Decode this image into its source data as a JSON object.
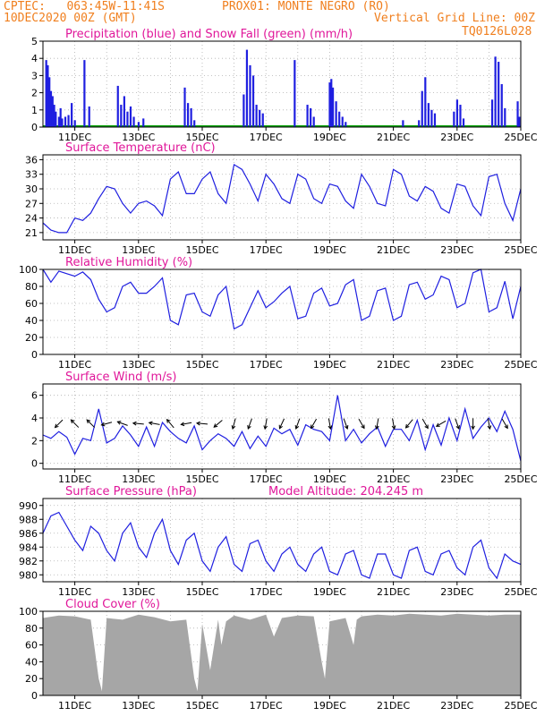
{
  "header": {
    "left_line1": "CPTEC:   063:45W-11:41S",
    "station": "PROX01: MONTE NEGRO (RO)",
    "left_line2": "10DEC2020 00Z (GMT)",
    "grid_note": "Vertical Grid Line: 00Z",
    "code": "TQ0126L028"
  },
  "colors": {
    "header": "#f07f1e",
    "title": "#e0179a",
    "series": "#1f1fe0",
    "snow": "#00a000",
    "cloud": "#a6a6a6",
    "grid": "#b0b0b0"
  },
  "chart_data": [
    {
      "id": "precip",
      "type": "bar",
      "title": "Precipitation (blue) and Snow Fall (green) (mm/h)",
      "x_tick_labels": [
        "11DEC",
        "13DEC",
        "15DEC",
        "17DEC",
        "19DEC",
        "21DEC",
        "23DEC",
        "25DEC"
      ],
      "y_ticks": [
        "0",
        "1",
        "2",
        "3",
        "4",
        "5"
      ],
      "ylim": [
        0,
        5
      ],
      "days_range": [
        0,
        15
      ],
      "bars": [
        [
          0.1,
          3.9
        ],
        [
          0.15,
          3.6
        ],
        [
          0.2,
          2.9
        ],
        [
          0.25,
          2.1
        ],
        [
          0.3,
          1.8
        ],
        [
          0.35,
          1.3
        ],
        [
          0.4,
          0.9
        ],
        [
          0.5,
          0.6
        ],
        [
          0.55,
          1.1
        ],
        [
          0.6,
          0.5
        ],
        [
          0.7,
          0.6
        ],
        [
          0.8,
          0.7
        ],
        [
          0.9,
          1.4
        ],
        [
          1.0,
          0.4
        ],
        [
          1.3,
          3.9
        ],
        [
          1.45,
          1.2
        ],
        [
          2.35,
          2.4
        ],
        [
          2.45,
          1.3
        ],
        [
          2.55,
          1.8
        ],
        [
          2.65,
          0.9
        ],
        [
          2.75,
          1.2
        ],
        [
          2.85,
          0.6
        ],
        [
          3.0,
          0.3
        ],
        [
          3.15,
          0.5
        ],
        [
          4.45,
          2.3
        ],
        [
          4.55,
          1.4
        ],
        [
          4.65,
          1.1
        ],
        [
          4.75,
          0.4
        ],
        [
          6.3,
          1.9
        ],
        [
          6.4,
          4.5
        ],
        [
          6.5,
          3.6
        ],
        [
          6.6,
          3.0
        ],
        [
          6.7,
          1.3
        ],
        [
          6.8,
          1.0
        ],
        [
          6.9,
          0.8
        ],
        [
          7.9,
          3.9
        ],
        [
          8.3,
          1.3
        ],
        [
          8.4,
          1.1
        ],
        [
          8.5,
          0.6
        ],
        [
          9.0,
          2.6
        ],
        [
          9.05,
          2.8
        ],
        [
          9.1,
          2.3
        ],
        [
          9.2,
          1.5
        ],
        [
          9.3,
          0.9
        ],
        [
          9.4,
          0.6
        ],
        [
          9.5,
          0.3
        ],
        [
          11.3,
          0.4
        ],
        [
          11.8,
          0.4
        ],
        [
          11.9,
          2.1
        ],
        [
          12.0,
          2.9
        ],
        [
          12.1,
          1.4
        ],
        [
          12.2,
          1.0
        ],
        [
          12.3,
          0.8
        ],
        [
          12.9,
          0.9
        ],
        [
          13.0,
          1.6
        ],
        [
          13.1,
          1.3
        ],
        [
          13.2,
          0.5
        ],
        [
          14.1,
          1.6
        ],
        [
          14.2,
          4.1
        ],
        [
          14.3,
          3.8
        ],
        [
          14.4,
          2.5
        ],
        [
          14.5,
          1.1
        ],
        [
          14.9,
          1.5
        ],
        [
          14.95,
          0.6
        ]
      ],
      "snow": 0
    },
    {
      "id": "temp",
      "type": "line",
      "title": "Surface Temperature (nC)",
      "x_tick_labels": [
        "11DEC",
        "13DEC",
        "15DEC",
        "17DEC",
        "19DEC",
        "21DEC",
        "23DEC",
        "25DEC"
      ],
      "y_ticks": [
        "21",
        "24",
        "27",
        "30",
        "33",
        "36"
      ],
      "ylim": [
        19.5,
        37
      ],
      "days_range": [
        0,
        15
      ],
      "x": [
        0,
        0.25,
        0.5,
        0.75,
        1,
        1.25,
        1.5,
        1.75,
        2,
        2.25,
        2.5,
        2.75,
        3,
        3.25,
        3.5,
        3.75,
        4,
        4.25,
        4.5,
        4.75,
        5,
        5.25,
        5.5,
        5.75,
        6,
        6.25,
        6.5,
        6.75,
        7,
        7.25,
        7.5,
        7.75,
        8,
        8.25,
        8.5,
        8.75,
        9,
        9.25,
        9.5,
        9.75,
        10,
        10.25,
        10.5,
        10.75,
        11,
        11.25,
        11.5,
        11.75,
        12,
        12.25,
        12.5,
        12.75,
        13,
        13.25,
        13.5,
        13.75,
        14,
        14.25,
        14.5,
        14.75,
        15
      ],
      "y": [
        23,
        21.5,
        21,
        21,
        24,
        23.5,
        25,
        28,
        30.5,
        30,
        27,
        25,
        27,
        27.5,
        26.5,
        24.5,
        32,
        33.5,
        29,
        29,
        32,
        33.5,
        29,
        27,
        35,
        34,
        31,
        27.5,
        33,
        31,
        28,
        27,
        33,
        32,
        28,
        27,
        31,
        30.5,
        27.5,
        26,
        33,
        30.5,
        27,
        26.5,
        34,
        33,
        28.5,
        27.5,
        30.5,
        29.5,
        26,
        25,
        31,
        30.5,
        26.5,
        24.5,
        32.5,
        33,
        27,
        23.5,
        30
      ]
    },
    {
      "id": "rh",
      "type": "line",
      "title": "Relative Humidity (%)",
      "x_tick_labels": [
        "11DEC",
        "13DEC",
        "15DEC",
        "17DEC",
        "19DEC",
        "21DEC",
        "23DEC",
        "25DEC"
      ],
      "y_ticks": [
        "0",
        "20",
        "40",
        "60",
        "80",
        "100"
      ],
      "ylim": [
        0,
        100
      ],
      "days_range": [
        0,
        15
      ],
      "x": [
        0,
        0.25,
        0.5,
        0.75,
        1,
        1.25,
        1.5,
        1.75,
        2,
        2.25,
        2.5,
        2.75,
        3,
        3.25,
        3.5,
        3.75,
        4,
        4.25,
        4.5,
        4.75,
        5,
        5.25,
        5.5,
        5.75,
        6,
        6.25,
        6.5,
        6.75,
        7,
        7.25,
        7.5,
        7.75,
        8,
        8.25,
        8.5,
        8.75,
        9,
        9.25,
        9.5,
        9.75,
        10,
        10.25,
        10.5,
        10.75,
        11,
        11.25,
        11.5,
        11.75,
        12,
        12.25,
        12.5,
        12.75,
        13,
        13.25,
        13.5,
        13.75,
        14,
        14.25,
        14.5,
        14.75,
        15
      ],
      "y": [
        100,
        85,
        98,
        95,
        92,
        97,
        88,
        65,
        50,
        55,
        80,
        85,
        72,
        72,
        80,
        90,
        40,
        35,
        70,
        72,
        50,
        45,
        70,
        80,
        30,
        35,
        55,
        75,
        55,
        62,
        72,
        80,
        42,
        45,
        72,
        78,
        57,
        60,
        82,
        88,
        40,
        45,
        75,
        78,
        40,
        45,
        82,
        85,
        65,
        70,
        92,
        88,
        55,
        60,
        96,
        100,
        50,
        55,
        86,
        42,
        80
      ]
    },
    {
      "id": "wind",
      "type": "line",
      "title": "Surface Wind (m/s)",
      "x_tick_labels": [
        "11DEC",
        "13DEC",
        "15DEC",
        "17DEC",
        "19DEC",
        "21DEC",
        "23DEC",
        "25DEC"
      ],
      "y_ticks": [
        "0",
        "2",
        "4",
        "6"
      ],
      "ylim": [
        -0.5,
        7
      ],
      "days_range": [
        0,
        15
      ],
      "x": [
        0,
        0.25,
        0.5,
        0.75,
        1,
        1.25,
        1.5,
        1.75,
        2,
        2.25,
        2.5,
        2.75,
        3,
        3.25,
        3.5,
        3.75,
        4,
        4.25,
        4.5,
        4.75,
        5,
        5.25,
        5.5,
        5.75,
        6,
        6.25,
        6.5,
        6.75,
        7,
        7.25,
        7.5,
        7.75,
        8,
        8.25,
        8.5,
        8.75,
        9,
        9.25,
        9.5,
        9.75,
        10,
        10.25,
        10.5,
        10.75,
        11,
        11.25,
        11.5,
        11.75,
        12,
        12.25,
        12.5,
        12.75,
        13,
        13.25,
        13.5,
        13.75,
        14,
        14.25,
        14.5,
        14.75,
        15
      ],
      "y": [
        2.5,
        2.2,
        2.8,
        2.3,
        0.8,
        2.2,
        2.0,
        4.8,
        1.8,
        2.2,
        3.3,
        2.5,
        1.5,
        3.2,
        1.5,
        3.6,
        2.8,
        2.2,
        1.8,
        3.3,
        1.2,
        2.0,
        2.6,
        2.2,
        1.5,
        2.8,
        1.3,
        2.4,
        1.5,
        3.1,
        2.6,
        3.0,
        1.6,
        3.4,
        3.0,
        2.8,
        2.0,
        6.0,
        2.0,
        3.0,
        1.8,
        2.6,
        3.2,
        1.5,
        3.0,
        3.0,
        2.0,
        3.8,
        1.2,
        3.4,
        1.6,
        4.0,
        2.0,
        4.8,
        2.2,
        3.2,
        4.0,
        2.8,
        4.6,
        3.0,
        0.2
      ],
      "arrow_days": [
        0.5,
        1.0,
        1.5,
        2.0,
        2.5,
        3.0,
        3.5,
        4.0,
        4.5,
        5.0,
        5.5,
        6.0,
        6.5,
        7.0,
        7.5,
        8.0,
        8.5,
        9.0,
        9.5,
        10.0,
        10.5,
        11.0,
        11.5,
        12.0,
        12.5,
        13.0,
        13.5,
        14.0,
        14.5
      ],
      "arrow_angles": [
        225,
        135,
        135,
        195,
        160,
        175,
        170,
        130,
        190,
        175,
        220,
        255,
        250,
        260,
        245,
        250,
        240,
        280,
        290,
        300,
        260,
        280,
        230,
        300,
        210,
        290,
        270,
        280,
        300
      ]
    },
    {
      "id": "pressure",
      "type": "line",
      "title": "Surface Pressure (hPa)",
      "altitude_label": "Model Altitude: 204.245 m",
      "x_tick_labels": [
        "11DEC",
        "13DEC",
        "15DEC",
        "17DEC",
        "19DEC",
        "21DEC",
        "23DEC",
        "25DEC"
      ],
      "y_ticks": [
        "980",
        "982",
        "984",
        "986",
        "988",
        "990"
      ],
      "ylim": [
        979,
        991
      ],
      "days_range": [
        0,
        15
      ],
      "x": [
        0,
        0.25,
        0.5,
        0.75,
        1,
        1.25,
        1.5,
        1.75,
        2,
        2.25,
        2.5,
        2.75,
        3,
        3.25,
        3.5,
        3.75,
        4,
        4.25,
        4.5,
        4.75,
        5,
        5.25,
        5.5,
        5.75,
        6,
        6.25,
        6.5,
        6.75,
        7,
        7.25,
        7.5,
        7.75,
        8,
        8.25,
        8.5,
        8.75,
        9,
        9.25,
        9.5,
        9.75,
        10,
        10.25,
        10.5,
        10.75,
        11,
        11.25,
        11.5,
        11.75,
        12,
        12.25,
        12.5,
        12.75,
        13,
        13.25,
        13.5,
        13.75,
        14,
        14.25,
        14.5,
        14.75,
        15
      ],
      "y": [
        986,
        988.5,
        989,
        987,
        985,
        983.5,
        987,
        986,
        983.5,
        982,
        986,
        987.5,
        984,
        982.5,
        986,
        988,
        983.5,
        981.5,
        985,
        986,
        982,
        980.5,
        984,
        985.5,
        981.5,
        980.5,
        984.5,
        985,
        982,
        980.5,
        983,
        984,
        981.5,
        980.5,
        983,
        984,
        980.5,
        980,
        983,
        983.5,
        980,
        979.5,
        983,
        983,
        980,
        979.5,
        983.5,
        984,
        980.5,
        980,
        983,
        983.5,
        981,
        980,
        984,
        985,
        981,
        979.5,
        983,
        982,
        981.5
      ]
    },
    {
      "id": "cloud",
      "type": "area",
      "title": "Cloud Cover (%)",
      "x_tick_labels": [
        "11DEC",
        "13DEC",
        "15DEC",
        "17DEC",
        "19DEC",
        "21DEC",
        "23DEC",
        "25DEC"
      ],
      "y_ticks": [
        "0",
        "20",
        "40",
        "60",
        "80",
        "100"
      ],
      "ylim": [
        0,
        100
      ],
      "days_range": [
        0,
        15
      ],
      "x": [
        0,
        0.5,
        1,
        1.5,
        1.75,
        1.85,
        2,
        2.5,
        3,
        3.5,
        4,
        4.5,
        4.75,
        4.85,
        5,
        5.25,
        5.5,
        5.6,
        5.75,
        6,
        6.5,
        7,
        7.25,
        7.5,
        8,
        8.5,
        8.75,
        8.85,
        9,
        9.5,
        9.75,
        9.85,
        10,
        10.5,
        11,
        11.5,
        12,
        12.5,
        13,
        13.5,
        14,
        14.5,
        15
      ],
      "y": [
        92,
        95,
        94,
        90,
        20,
        5,
        92,
        90,
        96,
        93,
        88,
        90,
        20,
        5,
        85,
        30,
        90,
        60,
        88,
        95,
        90,
        96,
        70,
        92,
        95,
        94,
        40,
        20,
        88,
        92,
        60,
        90,
        94,
        96,
        95,
        97,
        96,
        95,
        97,
        96,
        95,
        96,
        96
      ]
    }
  ]
}
